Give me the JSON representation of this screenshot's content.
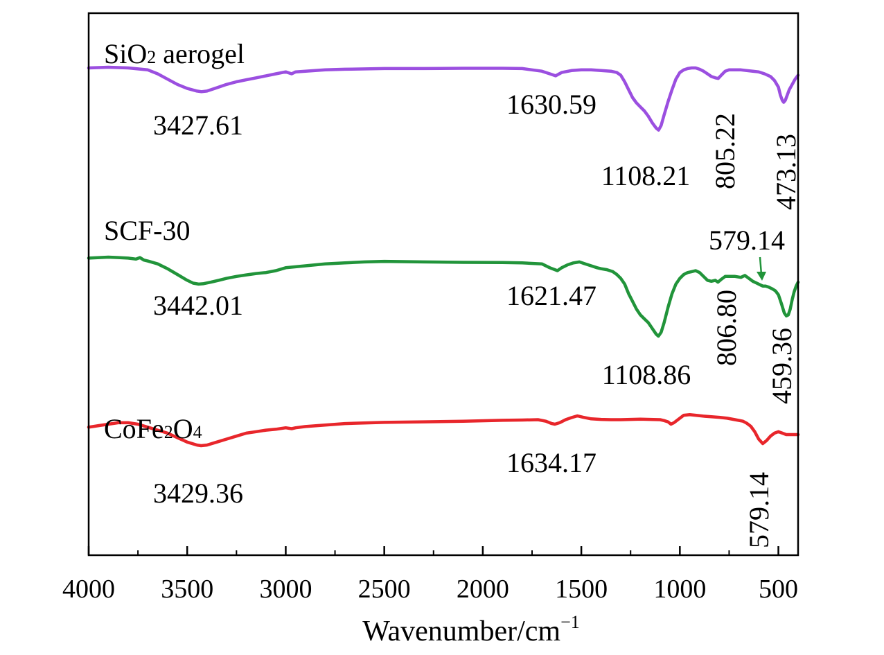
{
  "chart_data": {
    "type": "line",
    "title": "",
    "xlabel": "Wavenumber/cm",
    "xlabel_sup": "−1",
    "ylabel": "",
    "xlim": [
      4000,
      400
    ],
    "xticks": [
      4000,
      3500,
      3000,
      2500,
      2000,
      1500,
      1000,
      500
    ],
    "y_axis_ticks": false,
    "grid": false,
    "legend": "none",
    "series": [
      {
        "name": "SiO2 aerogel",
        "label_parts": [
          {
            "text": "SiO",
            "sub": false
          },
          {
            "text": "2",
            "sub": true
          },
          {
            "text": " aerogel",
            "sub": false
          }
        ],
        "color": "#9b4fe0",
        "x": [
          4000,
          3900,
          3800,
          3700,
          3650,
          3600,
          3550,
          3500,
          3450,
          3427.61,
          3400,
          3350,
          3300,
          3250,
          3200,
          3150,
          3100,
          3050,
          3000,
          2970,
          2950,
          2900,
          2850,
          2800,
          2700,
          2500,
          2300,
          2100,
          1900,
          1800,
          1750,
          1700,
          1660,
          1630.59,
          1600,
          1550,
          1500,
          1450,
          1400,
          1350,
          1320,
          1300,
          1280,
          1260,
          1240,
          1220,
          1200,
          1180,
          1160,
          1140,
          1120,
          1108.21,
          1095,
          1080,
          1060,
          1040,
          1020,
          1000,
          980,
          960,
          940,
          920,
          900,
          880,
          860,
          840,
          820,
          805.22,
          790,
          770,
          750,
          720,
          690,
          660,
          630,
          600,
          570,
          540,
          520,
          500,
          490,
          480,
          473.13,
          465,
          455,
          445,
          430,
          415,
          400
        ],
        "y": [
          98.5,
          99,
          98.5,
          97,
          94,
          90,
          86,
          83,
          81,
          80.5,
          81,
          83.5,
          86,
          88,
          89.5,
          91,
          92.5,
          94,
          95.5,
          94,
          95.5,
          96,
          96.5,
          97,
          97.5,
          98,
          98,
          98.2,
          98.2,
          98,
          97,
          96,
          94,
          92.5,
          95,
          96.5,
          97,
          97,
          96.5,
          96,
          95,
          93,
          88,
          82,
          76,
          72,
          69,
          66,
          62,
          57,
          53,
          51.5,
          55,
          63,
          73,
          82,
          90,
          95,
          97,
          98,
          98.5,
          98.5,
          97.5,
          96,
          94,
          92,
          91,
          90.5,
          93,
          96,
          97,
          97,
          97,
          96.5,
          96,
          95.5,
          94,
          92,
          89,
          84,
          78,
          74,
          72.5,
          74,
          78,
          82,
          86,
          90,
          93
        ]
      },
      {
        "name": "SCF-30",
        "label_parts": [
          {
            "text": "SCF-30",
            "sub": false
          }
        ],
        "color": "#21943a",
        "x": [
          4000,
          3900,
          3850,
          3800,
          3760,
          3740,
          3720,
          3700,
          3650,
          3600,
          3550,
          3500,
          3470,
          3442.01,
          3420,
          3380,
          3340,
          3300,
          3250,
          3200,
          3150,
          3100,
          3050,
          3000,
          2950,
          2900,
          2800,
          2700,
          2600,
          2500,
          2300,
          2100,
          1900,
          1800,
          1700,
          1660,
          1621.47,
          1600,
          1570,
          1540,
          1510,
          1480,
          1450,
          1420,
          1400,
          1370,
          1340,
          1320,
          1300,
          1280,
          1260,
          1240,
          1220,
          1200,
          1180,
          1160,
          1140,
          1120,
          1108.86,
          1095,
          1080,
          1060,
          1040,
          1020,
          1000,
          980,
          960,
          940,
          920,
          900,
          880,
          860,
          840,
          820,
          806.8,
          790,
          770,
          750,
          720,
          690,
          670,
          650,
          630,
          610,
          590,
          579.14,
          565,
          550,
          530,
          515,
          500,
          485,
          470,
          459.36,
          450,
          440,
          430,
          420,
          410,
          400
        ],
        "y": [
          98.5,
          99,
          98.8,
          98.5,
          98,
          98.8,
          97.5,
          97,
          95.5,
          93,
          90,
          87,
          85.5,
          85,
          85.2,
          86,
          87,
          88,
          89,
          89.8,
          90.5,
          91,
          92,
          93.5,
          94,
          94.5,
          95.5,
          96,
          96.5,
          96.8,
          96.5,
          96.3,
          96.2,
          96,
          95.5,
          93.5,
          92,
          93.5,
          95,
          96,
          96.5,
          95.5,
          94.5,
          93.5,
          93,
          92.5,
          91.5,
          90,
          88,
          85,
          80,
          76,
          72,
          69,
          67,
          65,
          62,
          59,
          58,
          60,
          65,
          73,
          80,
          85,
          88,
          90,
          91,
          91.5,
          92,
          91,
          89,
          87,
          86.5,
          87,
          86,
          87.5,
          89,
          89,
          89,
          88.5,
          89.5,
          88,
          86.5,
          85.5,
          84.5,
          84,
          84,
          83.5,
          82.5,
          81.5,
          79.5,
          75,
          70,
          68.5,
          69,
          72,
          77,
          81,
          84,
          86
        ]
      },
      {
        "name": "CoFe2O4",
        "label_parts": [
          {
            "text": "CoFe",
            "sub": false
          },
          {
            "text": "2",
            "sub": true
          },
          {
            "text": "O",
            "sub": false
          },
          {
            "text": "4",
            "sub": true
          }
        ],
        "color": "#e8262b",
        "x": [
          4000,
          3950,
          3900,
          3850,
          3800,
          3750,
          3700,
          3650,
          3600,
          3550,
          3500,
          3450,
          3429.36,
          3400,
          3350,
          3300,
          3250,
          3200,
          3150,
          3100,
          3050,
          3000,
          2970,
          2950,
          2900,
          2800,
          2700,
          2500,
          2300,
          2100,
          1900,
          1800,
          1720,
          1680,
          1650,
          1634.17,
          1610,
          1580,
          1550,
          1520,
          1490,
          1450,
          1400,
          1350,
          1300,
          1250,
          1200,
          1150,
          1100,
          1080,
          1060,
          1045,
          1030,
          1000,
          980,
          950,
          920,
          880,
          840,
          800,
          760,
          720,
          680,
          660,
          640,
          620,
          600,
          579.14,
          560,
          540,
          520,
          500,
          480,
          460,
          440,
          420,
          400
        ],
        "y": [
          98,
          98.5,
          99,
          99.5,
          99.5,
          99,
          98,
          97,
          96,
          94.5,
          93,
          92,
          91.8,
          92,
          93,
          94,
          95,
          96,
          96.5,
          97,
          97.3,
          97.8,
          97.5,
          97.8,
          98.2,
          98.7,
          99.2,
          99.6,
          99.8,
          100,
          100.3,
          100.4,
          100.5,
          100,
          99.2,
          99,
          99.5,
          100.5,
          101.2,
          101.8,
          101.3,
          100.8,
          100.6,
          100.5,
          100.5,
          100.6,
          100.7,
          100.6,
          100.5,
          100.2,
          99.8,
          99,
          99.5,
          101,
          102,
          102.2,
          102,
          101.7,
          101.5,
          101.3,
          101,
          100.5,
          100,
          99.3,
          98.3,
          96.5,
          94,
          92.5,
          93.5,
          95,
          96,
          96.5,
          96,
          95.5,
          95.5,
          95.5,
          95.5
        ]
      }
    ],
    "annotations": [
      {
        "text": "3427.61",
        "series": "SiO2 aerogel"
      },
      {
        "text": "1630.59",
        "series": "SiO2 aerogel"
      },
      {
        "text": "1108.21",
        "series": "SiO2 aerogel"
      },
      {
        "text": "805.22",
        "series": "SiO2 aerogel",
        "rotated": true
      },
      {
        "text": "473.13",
        "series": "SiO2 aerogel",
        "rotated": true
      },
      {
        "text": "3442.01",
        "series": "SCF-30"
      },
      {
        "text": "1621.47",
        "series": "SCF-30"
      },
      {
        "text": "1108.86",
        "series": "SCF-30"
      },
      {
        "text": "579.14",
        "series": "SCF-30",
        "arrow": true
      },
      {
        "text": "806.80",
        "series": "SCF-30",
        "rotated": true
      },
      {
        "text": "459.36",
        "series": "SCF-30",
        "rotated": true
      },
      {
        "text": "3429.36",
        "series": "CoFe2O4"
      },
      {
        "text": "1634.17",
        "series": "CoFe2O4"
      },
      {
        "text": "579.14",
        "series": "CoFe2O4",
        "rotated": true
      }
    ]
  }
}
